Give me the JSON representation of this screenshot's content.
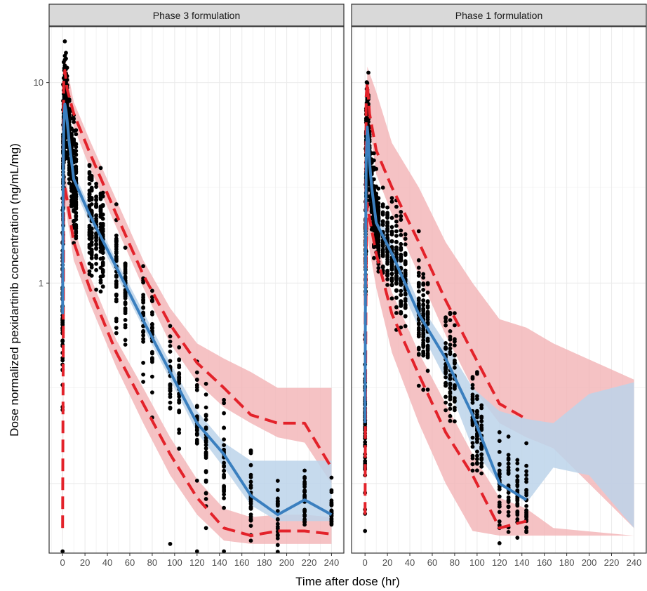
{
  "chart_data": {
    "type": "scatter",
    "title": "",
    "xlabel": "Time after dose (hr)",
    "ylabel": "Dose normalized pexidartinib concentration (ng/mL/mg)",
    "y_scale": "log10",
    "ylim": [
      0.045,
      19
    ],
    "xlim": [
      -12,
      251
    ],
    "x_ticks": [
      0,
      20,
      40,
      60,
      80,
      100,
      120,
      140,
      160,
      180,
      200,
      220,
      240
    ],
    "y_ticks": [
      1,
      10
    ],
    "grid": true,
    "legend": "none",
    "colors": {
      "points": "#000000",
      "median_line": "#3a7fbf",
      "median_band": "#bcd4ea",
      "percentile_line": "#e3222a",
      "percentile_band": "#f2b3b5",
      "strip_bg": "#d9d9d9",
      "grid": "#ebebeb"
    },
    "panels": [
      {
        "strip": "Phase 3 formulation",
        "observed_times": [
          0,
          0.5,
          1,
          1.5,
          2,
          3,
          4,
          6,
          8,
          10,
          12,
          24,
          26,
          30,
          34,
          36,
          48,
          56,
          72,
          80,
          96,
          104,
          120,
          128,
          144,
          168,
          192,
          216,
          240
        ],
        "observed_median": [
          [
            0,
            0.7
          ],
          [
            0.5,
            3.5
          ],
          [
            1,
            6.0
          ],
          [
            2,
            7.8
          ],
          [
            3,
            7.3
          ],
          [
            4,
            6.5
          ],
          [
            6,
            5.0
          ],
          [
            10,
            3.3
          ],
          [
            24,
            2.2
          ],
          [
            48,
            1.2
          ],
          [
            72,
            0.65
          ],
          [
            96,
            0.36
          ],
          [
            120,
            0.2
          ],
          [
            144,
            0.14
          ],
          [
            168,
            0.087
          ],
          [
            192,
            0.07
          ],
          [
            216,
            0.083
          ],
          [
            240,
            0.07
          ]
        ],
        "observed_p95": [
          [
            0,
            1.0
          ],
          [
            1,
            10.0
          ],
          [
            2,
            11.5
          ],
          [
            4,
            9.3
          ],
          [
            10,
            7.0
          ],
          [
            24,
            4.5
          ],
          [
            48,
            2.2
          ],
          [
            72,
            1.1
          ],
          [
            96,
            0.62
          ],
          [
            120,
            0.4
          ],
          [
            144,
            0.3
          ],
          [
            168,
            0.22
          ],
          [
            192,
            0.2
          ],
          [
            216,
            0.2
          ],
          [
            240,
            0.12
          ]
        ],
        "observed_p05": [
          [
            0,
            0.06
          ],
          [
            1,
            2.5
          ],
          [
            2,
            3.0
          ],
          [
            4,
            2.6
          ],
          [
            10,
            1.6
          ],
          [
            24,
            0.95
          ],
          [
            48,
            0.45
          ],
          [
            72,
            0.25
          ],
          [
            96,
            0.14
          ],
          [
            120,
            0.085
          ],
          [
            144,
            0.06
          ],
          [
            168,
            0.055
          ],
          [
            192,
            0.058
          ],
          [
            216,
            0.058
          ],
          [
            240,
            0.056
          ]
        ],
        "median_ci": [
          [
            0,
            0.6,
            0.9
          ],
          [
            2,
            6.8,
            8.5
          ],
          [
            10,
            3.0,
            3.6
          ],
          [
            24,
            2.0,
            2.4
          ],
          [
            48,
            1.1,
            1.3
          ],
          [
            72,
            0.6,
            0.72
          ],
          [
            96,
            0.33,
            0.4
          ],
          [
            120,
            0.18,
            0.23
          ],
          [
            144,
            0.12,
            0.16
          ],
          [
            168,
            0.078,
            0.13
          ],
          [
            192,
            0.065,
            0.13
          ],
          [
            216,
            0.065,
            0.13
          ],
          [
            240,
            0.065,
            0.13
          ]
        ],
        "p95_ci": [
          [
            0,
            0.8,
            1.4
          ],
          [
            2,
            9.5,
            13.5
          ],
          [
            10,
            6.0,
            8.0
          ],
          [
            24,
            3.8,
            5.2
          ],
          [
            48,
            1.9,
            2.6
          ],
          [
            72,
            0.95,
            1.3
          ],
          [
            96,
            0.5,
            0.75
          ],
          [
            120,
            0.32,
            0.5
          ],
          [
            144,
            0.24,
            0.42
          ],
          [
            168,
            0.2,
            0.36
          ],
          [
            192,
            0.17,
            0.3
          ],
          [
            216,
            0.16,
            0.3
          ],
          [
            240,
            0.1,
            0.3
          ]
        ],
        "p05_ci": [
          [
            0,
            0.05,
            0.08
          ],
          [
            2,
            2.5,
            3.6
          ],
          [
            10,
            1.3,
            1.9
          ],
          [
            24,
            0.8,
            1.1
          ],
          [
            48,
            0.38,
            0.52
          ],
          [
            72,
            0.2,
            0.3
          ],
          [
            96,
            0.11,
            0.17
          ],
          [
            120,
            0.07,
            0.105
          ],
          [
            144,
            0.052,
            0.075
          ],
          [
            168,
            0.05,
            0.068
          ],
          [
            192,
            0.05,
            0.07
          ],
          [
            216,
            0.05,
            0.07
          ],
          [
            240,
            0.05,
            0.068
          ]
        ],
        "outliers": [
          [
            0,
            0.033
          ],
          [
            120,
            0.031
          ],
          [
            144,
            0.036
          ],
          [
            96,
            0.05
          ],
          [
            128,
            0.06
          ]
        ]
      },
      {
        "strip": "Phase 1 formulation",
        "observed_times": [
          0,
          0.5,
          1,
          1.5,
          2,
          3,
          4,
          6,
          8,
          10,
          12,
          16,
          20,
          24,
          28,
          32,
          36,
          48,
          52,
          56,
          72,
          76,
          80,
          96,
          100,
          104,
          120,
          128,
          136,
          144
        ],
        "observed_median": [
          [
            0,
            0.2
          ],
          [
            0.5,
            1.5
          ],
          [
            1,
            4.0
          ],
          [
            2,
            6.0
          ],
          [
            3,
            5.2
          ],
          [
            4,
            4.0
          ],
          [
            6,
            3.0
          ],
          [
            10,
            2.0
          ],
          [
            24,
            1.4
          ],
          [
            48,
            0.7
          ],
          [
            72,
            0.42
          ],
          [
            96,
            0.22
          ],
          [
            120,
            0.1
          ],
          [
            144,
            0.083
          ]
        ],
        "observed_p95": [
          [
            0,
            0.5
          ],
          [
            1,
            8.5
          ],
          [
            2,
            10.0
          ],
          [
            4,
            7.0
          ],
          [
            10,
            4.6
          ],
          [
            24,
            3.0
          ],
          [
            48,
            1.6
          ],
          [
            72,
            0.82
          ],
          [
            96,
            0.45
          ],
          [
            120,
            0.25
          ],
          [
            144,
            0.21
          ]
        ],
        "observed_p05": [
          [
            0,
            0.07
          ],
          [
            1,
            1.5
          ],
          [
            2,
            2.5
          ],
          [
            4,
            2.1
          ],
          [
            10,
            1.4
          ],
          [
            24,
            0.7
          ],
          [
            48,
            0.35
          ],
          [
            72,
            0.18
          ],
          [
            96,
            0.11
          ],
          [
            120,
            0.06
          ],
          [
            144,
            0.065
          ]
        ],
        "median_ci": [
          [
            0,
            0.15,
            0.3
          ],
          [
            2,
            5.5,
            6.8
          ],
          [
            10,
            1.8,
            2.3
          ],
          [
            24,
            1.2,
            1.6
          ],
          [
            48,
            0.6,
            0.8
          ],
          [
            72,
            0.33,
            0.5
          ],
          [
            96,
            0.15,
            0.3
          ],
          [
            120,
            0.1,
            0.23
          ],
          [
            144,
            0.08,
            0.21
          ],
          [
            168,
            0.12,
            0.2
          ],
          [
            200,
            0.11,
            0.28
          ],
          [
            240,
            0.06,
            0.32
          ]
        ],
        "p95_ci": [
          [
            0,
            0.3,
            1.0
          ],
          [
            2,
            7.5,
            12.0
          ],
          [
            10,
            3.5,
            9.0
          ],
          [
            24,
            2.2,
            5.0
          ],
          [
            48,
            1.1,
            3.0
          ],
          [
            72,
            0.55,
            1.6
          ],
          [
            96,
            0.3,
            1.0
          ],
          [
            120,
            0.2,
            0.66
          ],
          [
            144,
            0.17,
            0.6
          ],
          [
            168,
            0.15,
            0.5
          ],
          [
            240,
            0.06,
            0.33
          ]
        ],
        "p05_ci": [
          [
            0,
            0.07,
            0.15
          ],
          [
            2,
            1.7,
            3.5
          ],
          [
            10,
            0.95,
            1.6
          ],
          [
            24,
            0.45,
            0.9
          ],
          [
            48,
            0.2,
            0.45
          ],
          [
            72,
            0.1,
            0.25
          ],
          [
            96,
            0.058,
            0.14
          ],
          [
            120,
            0.055,
            0.085
          ],
          [
            144,
            0.055,
            0.075
          ],
          [
            168,
            0.055,
            0.06
          ],
          [
            240,
            0.055,
            0.055
          ]
        ],
        "outliers": [
          [
            0,
            0.058
          ],
          [
            144,
            0.06
          ],
          [
            120,
            0.062
          ]
        ]
      }
    ]
  }
}
